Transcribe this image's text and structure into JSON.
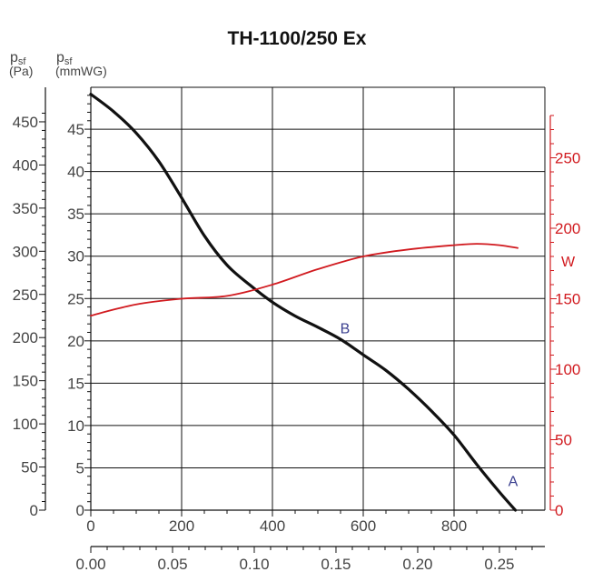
{
  "chart_data": {
    "type": "line",
    "title": "TH-1100/250 Ex",
    "axes": {
      "x_m3h": {
        "ticks": [
          "0",
          "200",
          "400",
          "600",
          "800"
        ],
        "range": [
          0,
          1000
        ]
      },
      "x_m3s": {
        "ticks": [
          "0.00",
          "0.05",
          "0.10",
          "0.15",
          "0.20",
          "0.25"
        ],
        "range": [
          0,
          0.2778
        ]
      },
      "y_pa": {
        "label": "p",
        "sub": "sf",
        "unit": "(Pa)",
        "ticks": [
          "0",
          "50",
          "100",
          "150",
          "200",
          "250",
          "300",
          "350",
          "400",
          "450"
        ],
        "range": [
          0,
          490
        ]
      },
      "y_mmwg": {
        "label": "p",
        "sub": "sf",
        "unit": "(mmWG)",
        "ticks": [
          "0",
          "5",
          "10",
          "15",
          "20",
          "25",
          "30",
          "35",
          "40",
          "45"
        ],
        "range": [
          0,
          49.95
        ]
      },
      "y_w": {
        "label": "W",
        "ticks": [
          "0",
          "50",
          "100",
          "150",
          "200",
          "250"
        ],
        "range": [
          0,
          300
        ]
      }
    },
    "series": [
      {
        "axis": "y_pa",
        "color": "#111111",
        "points": [
          [
            0,
            482
          ],
          [
            50,
            462
          ],
          [
            100,
            437
          ],
          [
            150,
            404
          ],
          [
            200,
            362
          ],
          [
            250,
            318
          ],
          [
            300,
            284
          ],
          [
            350,
            261
          ],
          [
            400,
            241
          ],
          [
            450,
            225
          ],
          [
            500,
            212
          ],
          [
            550,
            198
          ],
          [
            600,
            180
          ],
          [
            650,
            162
          ],
          [
            700,
            140
          ],
          [
            750,
            115
          ],
          [
            800,
            87
          ],
          [
            850,
            53
          ],
          [
            900,
            21
          ],
          [
            935,
            0
          ]
        ]
      },
      {
        "axis": "y_w",
        "color": "#d11a1f",
        "points": [
          [
            0,
            138
          ],
          [
            100,
            146
          ],
          [
            200,
            150
          ],
          [
            300,
            152
          ],
          [
            400,
            160
          ],
          [
            500,
            171
          ],
          [
            600,
            180
          ],
          [
            700,
            185
          ],
          [
            800,
            188
          ],
          [
            850,
            189
          ],
          [
            900,
            188
          ],
          [
            940,
            186
          ]
        ]
      }
    ],
    "annotations": [
      {
        "text": "A",
        "x": 930,
        "y_pa": 28
      },
      {
        "text": "B",
        "x": 560,
        "y_pa": 205
      }
    ]
  }
}
